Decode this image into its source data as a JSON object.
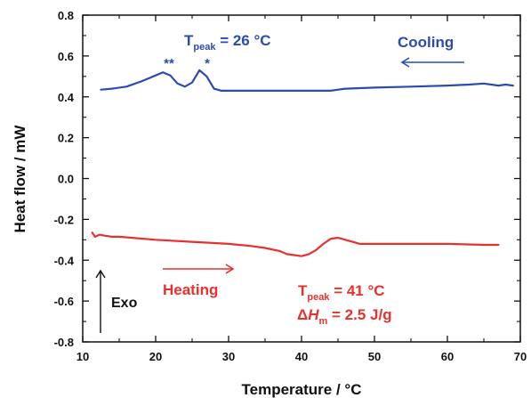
{
  "chart_data": {
    "type": "line",
    "xlabel": "Temperature / °C",
    "ylabel": "Heat flow / mW",
    "xlim": [
      10,
      70
    ],
    "ylim": [
      -0.8,
      0.8
    ],
    "x_ticks": [
      "10",
      "20",
      "30",
      "40",
      "50",
      "60",
      "70"
    ],
    "y_ticks": [
      "-0.8",
      "-0.6",
      "-0.4",
      "-0.2",
      "0.0",
      "0.2",
      "0.4",
      "0.6",
      "0.8"
    ],
    "grid": false,
    "colors": {
      "cooling": "#2b4bb0",
      "heating": "#e8302e",
      "axis": "#111111"
    },
    "series": [
      {
        "name": "Cooling",
        "x": [
          12.5,
          14,
          16,
          18,
          19,
          20,
          21,
          22,
          23,
          24,
          25,
          26,
          27,
          28,
          29,
          30,
          35,
          40,
          44,
          45,
          46,
          50,
          55,
          60,
          63,
          65,
          66,
          67,
          68,
          69
        ],
        "y": [
          0.435,
          0.44,
          0.45,
          0.475,
          0.49,
          0.505,
          0.52,
          0.505,
          0.465,
          0.45,
          0.47,
          0.53,
          0.5,
          0.44,
          0.43,
          0.43,
          0.43,
          0.43,
          0.43,
          0.435,
          0.44,
          0.445,
          0.45,
          0.455,
          0.46,
          0.465,
          0.46,
          0.455,
          0.46,
          0.455
        ]
      },
      {
        "name": "Heating",
        "x": [
          11.3,
          11.7,
          12.3,
          13,
          14,
          15,
          20,
          25,
          30,
          33,
          35,
          37,
          38,
          39,
          40,
          41,
          42,
          43,
          44,
          45,
          46,
          47,
          48,
          50,
          55,
          60,
          65,
          67
        ],
        "y": [
          -0.265,
          -0.285,
          -0.275,
          -0.28,
          -0.285,
          -0.285,
          -0.3,
          -0.31,
          -0.32,
          -0.33,
          -0.34,
          -0.355,
          -0.37,
          -0.375,
          -0.38,
          -0.37,
          -0.35,
          -0.32,
          -0.295,
          -0.29,
          -0.3,
          -0.31,
          -0.32,
          -0.32,
          -0.32,
          -0.32,
          -0.325,
          -0.325
        ]
      }
    ],
    "annotations": {
      "cooling_label": "Cooling",
      "cooling_tpeak_prefix": "T",
      "cooling_tpeak_sub": "peak",
      "cooling_tpeak_value": " = 26 °C",
      "peak_double_star": "**",
      "peak_single_star": "*",
      "heating_label": "Heating",
      "heating_tpeak_prefix": "T",
      "heating_tpeak_sub": "peak",
      "heating_tpeak_value": " = 41 °C",
      "enthalpy_delta": "Δ",
      "enthalpy_h": "H",
      "enthalpy_sub": "m",
      "enthalpy_value": " = 2.5 J/g",
      "exo_label": "Exo"
    }
  }
}
